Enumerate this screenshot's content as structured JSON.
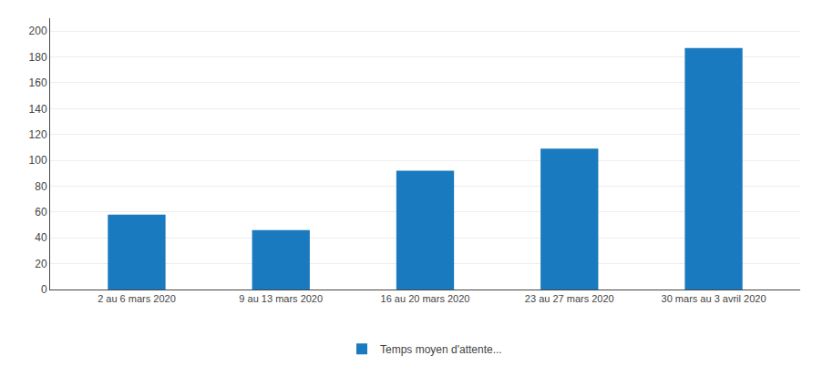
{
  "chart_data": {
    "type": "bar",
    "categories": [
      "2 au 6 mars 2020",
      "9 au 13 mars 2020",
      "16 au 20 mars 2020",
      "23 au 27 mars 2020",
      "30 mars au 3 avril 2020"
    ],
    "series": [
      {
        "name": "Temps moyen d'attente...",
        "color": "#1a7abf",
        "values": [
          58,
          46,
          92,
          109,
          187
        ]
      }
    ],
    "ylim": [
      0,
      210
    ],
    "yticks": [
      0,
      20,
      40,
      60,
      80,
      100,
      120,
      140,
      160,
      180,
      200
    ],
    "grid": true,
    "legend": "bottom"
  }
}
